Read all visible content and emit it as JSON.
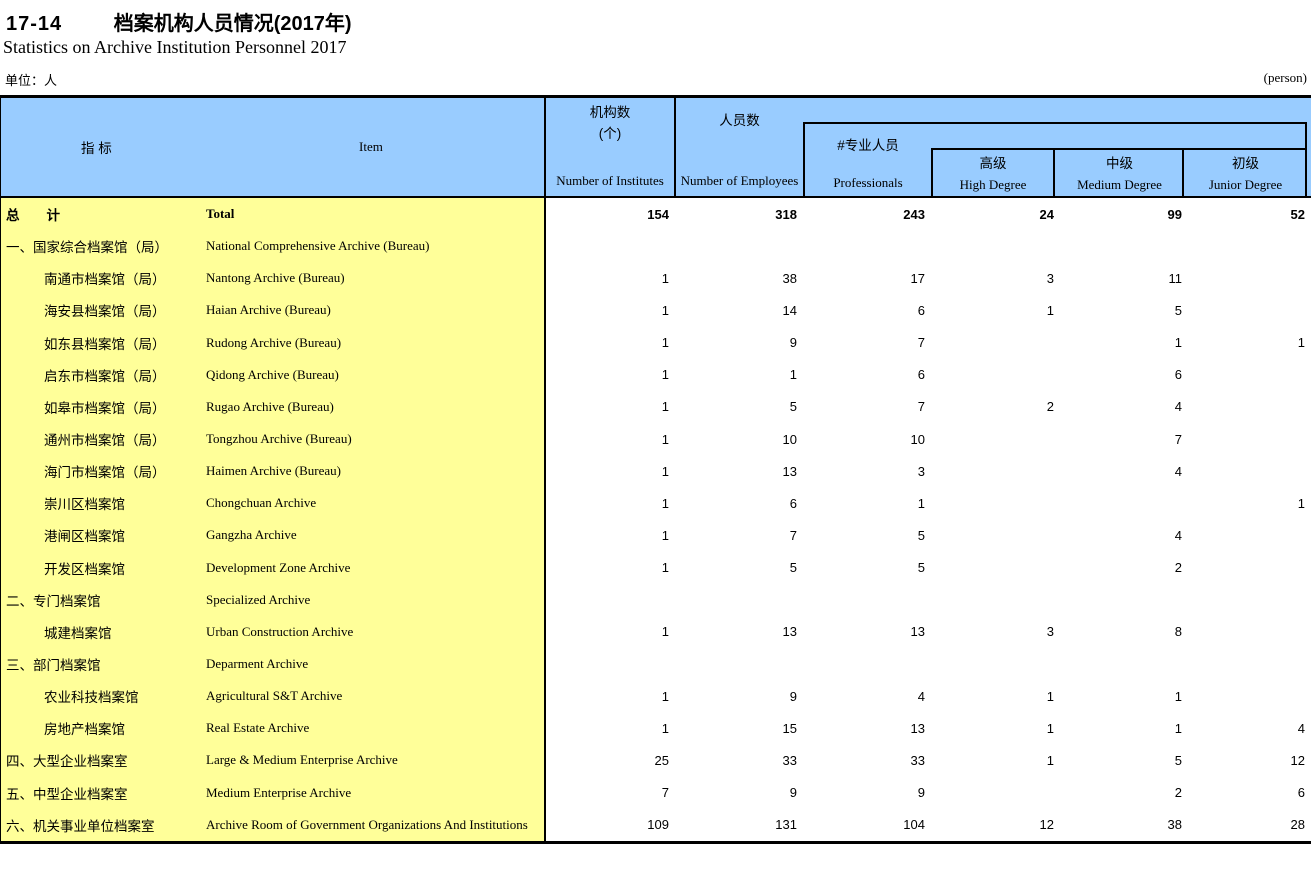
{
  "page": {
    "code": "17-14",
    "title_cn": "档案机构人员情况(2017年)",
    "title_en": "Statistics on Archive Institution Personnel 2017",
    "unit_left": "单位：人",
    "unit_right": "(person)"
  },
  "header": {
    "item_cn": "指  标",
    "item_en": "Item",
    "institutes_cn": "机构数",
    "institutes_unit": "(个)",
    "institutes_en": "Number of Institutes",
    "employees_cn": "人员数",
    "employees_en": "Number of Employees",
    "professionals_cn": "#专业人员",
    "professionals_en": "Professionals",
    "high_cn": "高级",
    "high_en": "High Degree",
    "medium_cn": "中级",
    "medium_en": "Medium Degree",
    "junior_cn": "初级",
    "junior_en": "Junior Degree"
  },
  "colors": {
    "header_bg": "#99CCFF",
    "item_bg": "#FFFF99",
    "border": "#000000"
  },
  "table": {
    "rows": [
      {
        "cn": "总　　计",
        "en": "Total",
        "bold": true,
        "indent": 0,
        "values": [
          "154",
          "318",
          "243",
          "24",
          "99",
          "52"
        ]
      },
      {
        "cn": "一、国家综合档案馆（局）",
        "en": "National Comprehensive Archive (Bureau)",
        "bold": false,
        "indent": 0,
        "values": [
          "",
          "",
          "",
          "",
          "",
          ""
        ]
      },
      {
        "cn": "南通市档案馆（局）",
        "en": "Nantong Archive (Bureau)",
        "bold": false,
        "indent": 1,
        "values": [
          "1",
          "38",
          "17",
          "3",
          "11",
          ""
        ]
      },
      {
        "cn": "海安县档案馆（局）",
        "en": "Haian Archive (Bureau)",
        "bold": false,
        "indent": 1,
        "values": [
          "1",
          "14",
          "6",
          "1",
          "5",
          ""
        ]
      },
      {
        "cn": "如东县档案馆（局）",
        "en": "Rudong Archive (Bureau)",
        "bold": false,
        "indent": 1,
        "values": [
          "1",
          "9",
          "7",
          "",
          "1",
          "1"
        ]
      },
      {
        "cn": "启东市档案馆（局）",
        "en": "Qidong Archive (Bureau)",
        "bold": false,
        "indent": 1,
        "values": [
          "1",
          "1",
          "6",
          "",
          "6",
          ""
        ]
      },
      {
        "cn": "如皋市档案馆（局）",
        "en": "Rugao Archive (Bureau)",
        "bold": false,
        "indent": 1,
        "values": [
          "1",
          "5",
          "7",
          "2",
          "4",
          ""
        ]
      },
      {
        "cn": "通州市档案馆（局）",
        "en": "Tongzhou Archive (Bureau)",
        "bold": false,
        "indent": 1,
        "values": [
          "1",
          "10",
          "10",
          "",
          "7",
          ""
        ]
      },
      {
        "cn": "海门市档案馆（局）",
        "en": "Haimen Archive (Bureau)",
        "bold": false,
        "indent": 1,
        "values": [
          "1",
          "13",
          "3",
          "",
          "4",
          ""
        ]
      },
      {
        "cn": "崇川区档案馆",
        "en": "Chongchuan Archive",
        "bold": false,
        "indent": 1,
        "values": [
          "1",
          "6",
          "1",
          "",
          "",
          "1"
        ]
      },
      {
        "cn": "港闸区档案馆",
        "en": "Gangzha Archive",
        "bold": false,
        "indent": 1,
        "values": [
          "1",
          "7",
          "5",
          "",
          "4",
          ""
        ]
      },
      {
        "cn": "开发区档案馆",
        "en": "Development Zone Archive",
        "bold": false,
        "indent": 1,
        "values": [
          "1",
          "5",
          "5",
          "",
          "2",
          ""
        ]
      },
      {
        "cn": "二、专门档案馆",
        "en": "Specialized Archive",
        "bold": false,
        "indent": 0,
        "values": [
          "",
          "",
          "",
          "",
          "",
          ""
        ]
      },
      {
        "cn": "城建档案馆",
        "en": "Urban Construction Archive",
        "bold": false,
        "indent": 1,
        "values": [
          "1",
          "13",
          "13",
          "3",
          "8",
          ""
        ]
      },
      {
        "cn": "三、部门档案馆",
        "en": "Deparment Archive",
        "bold": false,
        "indent": 0,
        "values": [
          "",
          "",
          "",
          "",
          "",
          ""
        ]
      },
      {
        "cn": "农业科技档案馆",
        "en": "Agricultural S&T Archive",
        "bold": false,
        "indent": 1,
        "values": [
          "1",
          "9",
          "4",
          "1",
          "1",
          ""
        ]
      },
      {
        "cn": "房地产档案馆",
        "en": "Real Estate Archive",
        "bold": false,
        "indent": 1,
        "values": [
          "1",
          "15",
          "13",
          "1",
          "1",
          "4"
        ]
      },
      {
        "cn": "四、大型企业档案室",
        "en": "Large & Medium Enterprise Archive",
        "bold": false,
        "indent": 0,
        "values": [
          "25",
          "33",
          "33",
          "1",
          "5",
          "12"
        ]
      },
      {
        "cn": "五、中型企业档案室",
        "en": "Medium Enterprise Archive",
        "bold": false,
        "indent": 0,
        "values": [
          "7",
          "9",
          "9",
          "",
          "2",
          "6"
        ]
      },
      {
        "cn": "六、机关事业单位档案室",
        "en": "Archive Room of Government Organizations And Institutions",
        "bold": false,
        "indent": 0,
        "values": [
          "109",
          "131",
          "104",
          "12",
          "38",
          "28"
        ]
      }
    ]
  }
}
